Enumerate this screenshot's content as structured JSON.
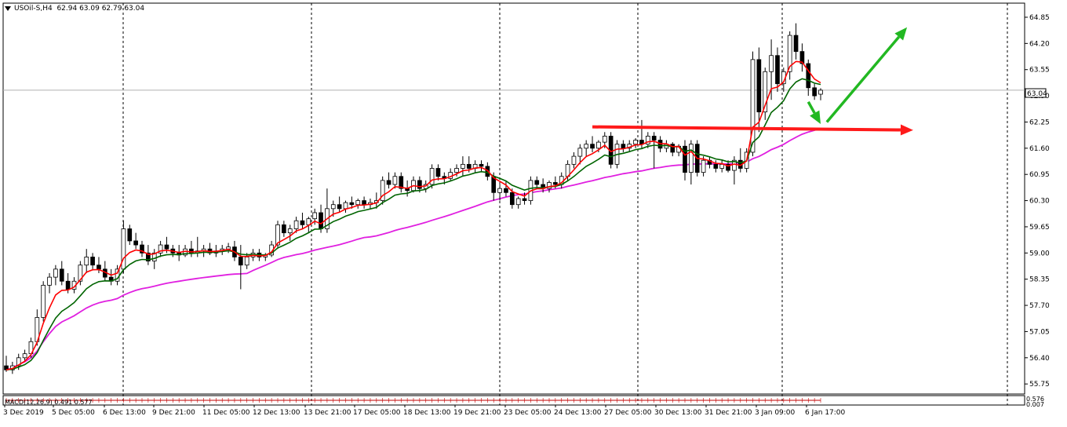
{
  "header": {
    "symbol": "USOil-S,H4",
    "ohlc": "62.94 63.09 62.79 63.04"
  },
  "macd": {
    "label": "MACD(12,26,9) 0.491 0.577",
    "axis_top": "0.576",
    "axis_bottom": "0.007"
  },
  "chart_data": {
    "type": "candlestick",
    "instrument": "USOil-S",
    "timeframe": "H4",
    "current_price": 63.04,
    "price_tag": "63.04",
    "y_ticks": [
      "64.85",
      "64.20",
      "63.55",
      "62.90",
      "62.25",
      "61.60",
      "60.95",
      "60.30",
      "59.65",
      "59.00",
      "58.35",
      "57.70",
      "57.05",
      "56.40",
      "55.75"
    ],
    "x_ticks": [
      "3 Dec 2019",
      "5 Dec 05:00",
      "6 Dec 13:00",
      "9 Dec 21:00",
      "11 Dec 05:00",
      "12 Dec 13:00",
      "13 Dec 21:00",
      "17 Dec 05:00",
      "18 Dec 13:00",
      "19 Dec 21:00",
      "23 Dec 05:00",
      "24 Dec 13:00",
      "27 Dec 05:00",
      "30 Dec 13:00",
      "31 Dec 21:00",
      "3 Jan 09:00",
      "6 Jan 17:00"
    ],
    "ylim": [
      55.5,
      65.2
    ],
    "candles": [
      [
        56.2,
        56.45,
        56.05,
        56.1
      ],
      [
        56.1,
        56.3,
        56.0,
        56.2
      ],
      [
        56.2,
        56.5,
        56.1,
        56.4
      ],
      [
        56.4,
        56.6,
        56.3,
        56.5
      ],
      [
        56.5,
        56.9,
        56.4,
        56.8
      ],
      [
        56.8,
        57.6,
        56.7,
        57.4
      ],
      [
        57.4,
        58.3,
        57.3,
        58.2
      ],
      [
        58.2,
        58.5,
        58.0,
        58.4
      ],
      [
        58.4,
        58.7,
        58.2,
        58.6
      ],
      [
        58.6,
        58.8,
        58.2,
        58.3
      ],
      [
        58.3,
        58.5,
        58.0,
        58.1
      ],
      [
        58.1,
        58.4,
        58.0,
        58.3
      ],
      [
        58.3,
        58.8,
        58.2,
        58.7
      ],
      [
        58.7,
        59.1,
        58.5,
        58.9
      ],
      [
        58.9,
        59.0,
        58.6,
        58.7
      ],
      [
        58.7,
        58.9,
        58.5,
        58.6
      ],
      [
        58.6,
        58.8,
        58.3,
        58.4
      ],
      [
        58.4,
        58.6,
        58.2,
        58.3
      ],
      [
        58.3,
        58.7,
        58.2,
        58.6
      ],
      [
        58.6,
        59.8,
        58.5,
        59.6
      ],
      [
        59.6,
        59.7,
        59.2,
        59.3
      ],
      [
        59.3,
        59.5,
        59.1,
        59.2
      ],
      [
        59.2,
        59.3,
        58.9,
        59.0
      ],
      [
        59.0,
        59.2,
        58.7,
        58.8
      ],
      [
        58.8,
        59.1,
        58.6,
        59.0
      ],
      [
        59.0,
        59.3,
        58.9,
        59.2
      ],
      [
        59.2,
        59.4,
        59.0,
        59.1
      ],
      [
        59.1,
        59.2,
        58.9,
        59.0
      ],
      [
        59.0,
        59.2,
        58.8,
        58.95
      ],
      [
        58.95,
        59.2,
        58.9,
        59.1
      ],
      [
        59.1,
        59.3,
        58.9,
        59.0
      ],
      [
        59.0,
        59.4,
        58.9,
        59.05
      ],
      [
        59.05,
        59.2,
        58.9,
        59.1
      ],
      [
        59.1,
        59.25,
        58.95,
        59.0
      ],
      [
        59.0,
        59.2,
        58.9,
        59.05
      ],
      [
        59.05,
        59.2,
        58.95,
        59.1
      ],
      [
        59.1,
        59.25,
        59.0,
        59.15
      ],
      [
        59.15,
        59.3,
        58.8,
        58.9
      ],
      [
        58.9,
        59.2,
        58.1,
        58.7
      ],
      [
        58.7,
        59.0,
        58.6,
        58.9
      ],
      [
        58.9,
        59.1,
        58.8,
        59.0
      ],
      [
        59.0,
        59.1,
        58.8,
        58.9
      ],
      [
        58.9,
        59.0,
        58.8,
        58.95
      ],
      [
        58.95,
        59.3,
        58.9,
        59.2
      ],
      [
        59.2,
        59.8,
        59.1,
        59.7
      ],
      [
        59.7,
        59.8,
        59.4,
        59.5
      ],
      [
        59.5,
        59.7,
        59.3,
        59.6
      ],
      [
        59.6,
        59.9,
        59.5,
        59.8
      ],
      [
        59.8,
        60.0,
        59.6,
        59.7
      ],
      [
        59.7,
        59.9,
        59.5,
        59.85
      ],
      [
        59.85,
        60.1,
        59.7,
        60.0
      ],
      [
        60.0,
        60.2,
        59.5,
        59.6
      ],
      [
        59.6,
        60.6,
        59.5,
        60.1
      ],
      [
        60.1,
        60.3,
        59.9,
        60.2
      ],
      [
        60.2,
        60.4,
        60.0,
        60.1
      ],
      [
        60.1,
        60.3,
        60.0,
        60.25
      ],
      [
        60.25,
        60.4,
        60.1,
        60.2
      ],
      [
        60.2,
        60.35,
        60.1,
        60.3
      ],
      [
        60.3,
        60.4,
        60.1,
        60.2
      ],
      [
        60.2,
        60.35,
        60.1,
        60.25
      ],
      [
        60.25,
        60.5,
        60.1,
        60.3
      ],
      [
        60.3,
        60.9,
        60.2,
        60.8
      ],
      [
        60.8,
        61.0,
        60.6,
        60.7
      ],
      [
        60.7,
        61.0,
        60.6,
        60.9
      ],
      [
        60.9,
        61.0,
        60.5,
        60.6
      ],
      [
        60.6,
        60.8,
        60.4,
        60.55
      ],
      [
        60.55,
        60.9,
        60.5,
        60.8
      ],
      [
        60.8,
        60.9,
        60.5,
        60.6
      ],
      [
        60.6,
        60.8,
        60.5,
        60.7
      ],
      [
        60.7,
        61.2,
        60.6,
        61.1
      ],
      [
        61.1,
        61.2,
        60.8,
        60.9
      ],
      [
        60.9,
        61.0,
        60.7,
        60.85
      ],
      [
        60.85,
        61.1,
        60.8,
        61.0
      ],
      [
        61.0,
        61.2,
        60.9,
        61.1
      ],
      [
        61.1,
        61.4,
        60.9,
        61.2
      ],
      [
        61.2,
        61.4,
        61.0,
        61.1
      ],
      [
        61.1,
        61.3,
        61.0,
        61.2
      ],
      [
        61.2,
        61.3,
        61.0,
        61.15
      ],
      [
        61.15,
        61.25,
        60.8,
        60.9
      ],
      [
        60.9,
        61.0,
        60.3,
        60.5
      ],
      [
        60.5,
        60.7,
        60.3,
        60.6
      ],
      [
        60.6,
        60.8,
        60.4,
        60.5
      ],
      [
        60.5,
        60.6,
        60.1,
        60.2
      ],
      [
        60.2,
        60.4,
        60.1,
        60.35
      ],
      [
        60.35,
        60.5,
        60.2,
        60.3
      ],
      [
        60.3,
        60.9,
        60.2,
        60.8
      ],
      [
        60.8,
        60.9,
        60.6,
        60.7
      ],
      [
        60.7,
        60.85,
        60.5,
        60.6
      ],
      [
        60.6,
        60.8,
        60.5,
        60.75
      ],
      [
        60.75,
        60.9,
        60.6,
        60.7
      ],
      [
        60.7,
        61.0,
        60.6,
        60.9
      ],
      [
        60.9,
        61.3,
        60.8,
        61.2
      ],
      [
        61.2,
        61.5,
        61.1,
        61.4
      ],
      [
        61.4,
        61.7,
        61.2,
        61.6
      ],
      [
        61.6,
        61.8,
        61.4,
        61.7
      ],
      [
        61.7,
        61.9,
        61.5,
        61.6
      ],
      [
        61.6,
        61.8,
        61.5,
        61.75
      ],
      [
        61.75,
        62.0,
        61.6,
        61.9
      ],
      [
        61.9,
        62.0,
        61.1,
        61.2
      ],
      [
        61.2,
        61.8,
        61.1,
        61.7
      ],
      [
        61.7,
        61.8,
        61.5,
        61.6
      ],
      [
        61.6,
        61.8,
        61.5,
        61.7
      ],
      [
        61.7,
        61.85,
        61.6,
        61.8
      ],
      [
        61.8,
        62.3,
        61.6,
        61.7
      ],
      [
        61.7,
        62.0,
        61.6,
        61.9
      ],
      [
        61.9,
        62.0,
        61.1,
        61.8
      ],
      [
        61.8,
        61.9,
        61.5,
        61.6
      ],
      [
        61.6,
        61.8,
        61.5,
        61.7
      ],
      [
        61.7,
        61.75,
        61.4,
        61.5
      ],
      [
        61.5,
        61.7,
        61.4,
        61.65
      ],
      [
        61.65,
        61.8,
        60.8,
        61.0
      ],
      [
        61.0,
        61.8,
        60.7,
        61.7
      ],
      [
        61.7,
        61.8,
        60.9,
        61.0
      ],
      [
        61.0,
        61.4,
        60.9,
        61.3
      ],
      [
        61.3,
        61.4,
        61.1,
        61.2
      ],
      [
        61.2,
        61.3,
        61.0,
        61.1
      ],
      [
        61.1,
        61.3,
        61.0,
        61.2
      ],
      [
        61.2,
        61.3,
        61.0,
        61.05
      ],
      [
        61.05,
        61.4,
        60.7,
        61.3
      ],
      [
        61.3,
        61.6,
        61.0,
        61.1
      ],
      [
        61.1,
        61.6,
        61.0,
        61.5
      ],
      [
        61.5,
        64.0,
        61.4,
        63.8
      ],
      [
        63.8,
        64.1,
        62.0,
        62.5
      ],
      [
        62.5,
        63.6,
        62.3,
        63.5
      ],
      [
        63.5,
        64.3,
        62.8,
        63.9
      ],
      [
        63.9,
        64.1,
        63.0,
        63.2
      ],
      [
        63.2,
        63.6,
        63.0,
        63.5
      ],
      [
        63.5,
        64.5,
        63.3,
        64.4
      ],
      [
        64.4,
        64.7,
        63.8,
        64.0
      ],
      [
        64.0,
        64.2,
        63.5,
        63.7
      ],
      [
        63.7,
        63.8,
        62.9,
        63.1
      ],
      [
        63.1,
        63.2,
        62.8,
        62.9
      ],
      [
        62.94,
        63.09,
        62.79,
        63.04
      ]
    ],
    "moving_averages": [
      {
        "color": "#ff0000"
      },
      {
        "color": "#006400"
      },
      {
        "color": "#e020e0"
      }
    ],
    "horizontal_price_line": 63.04,
    "annotations": [
      {
        "type": "arrow",
        "color": "#ff1a1a",
        "from": [
          95,
          62.13
        ],
        "to": [
          147,
          62.05
        ]
      },
      {
        "type": "arrow",
        "color": "#22b822",
        "from": [
          130,
          62.75
        ],
        "to": [
          132,
          62.2
        ]
      },
      {
        "type": "arrow",
        "color": "#22b822",
        "from": [
          133,
          62.25
        ],
        "to": [
          146,
          64.6
        ]
      }
    ]
  }
}
